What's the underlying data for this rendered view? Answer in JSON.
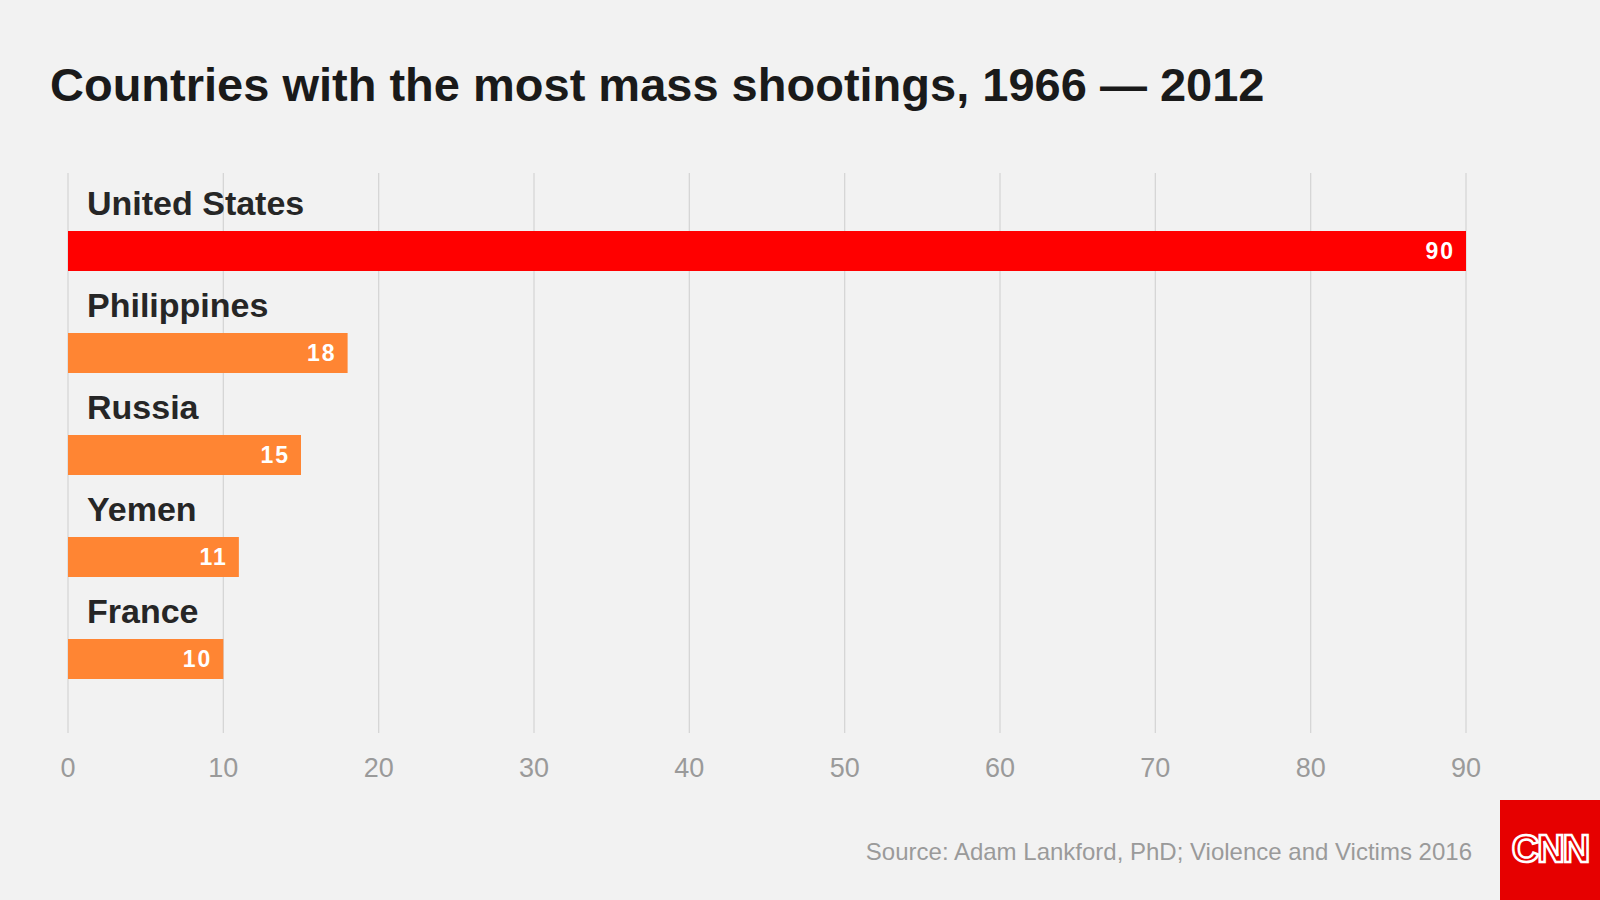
{
  "chart_data": {
    "type": "bar",
    "orientation": "horizontal",
    "title": "Countries with the most mass shootings, 1966 — 2012",
    "categories": [
      "United States",
      "Philippines",
      "Russia",
      "Yemen",
      "France"
    ],
    "values": [
      90,
      18,
      15,
      11,
      10
    ],
    "colors": [
      "#ff0000",
      "#ff8533",
      "#ff8533",
      "#ff8533",
      "#ff8533"
    ],
    "xlim": [
      0,
      90
    ],
    "xticks": [
      0,
      10,
      20,
      30,
      40,
      50,
      60,
      70,
      80,
      90
    ],
    "grid": true,
    "data_labels": true,
    "source": "Source: Adam Lankford, PhD; Violence and Victims 2016"
  },
  "logo": "CNN"
}
